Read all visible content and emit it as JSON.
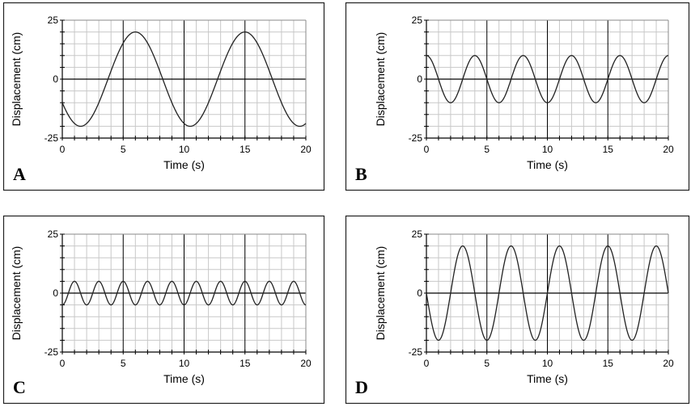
{
  "chart_data": [
    {
      "type": "line",
      "panel_label": "A",
      "xlabel": "Time (s)",
      "ylabel": "Displacement (cm)",
      "xlim": [
        0,
        20
      ],
      "ylim": [
        -25,
        25
      ],
      "xticks": [
        "0",
        "5",
        "10",
        "15",
        "20"
      ],
      "yticks": [
        "25",
        "0",
        "-25"
      ],
      "grid": true,
      "series": [
        {
          "amplitude": 20,
          "period": 9,
          "first_peak": 6
        }
      ]
    },
    {
      "type": "line",
      "panel_label": "B",
      "xlabel": "Time (s)",
      "ylabel": "Displacement (cm)",
      "xlim": [
        0,
        20
      ],
      "ylim": [
        -25,
        25
      ],
      "xticks": [
        "0",
        "5",
        "10",
        "15",
        "20"
      ],
      "yticks": [
        "25",
        "0",
        "-25"
      ],
      "grid": true,
      "series": [
        {
          "amplitude": 10,
          "period": 4,
          "first_peak": 0
        }
      ]
    },
    {
      "type": "line",
      "panel_label": "C",
      "xlabel": "Time (s)",
      "ylabel": "Displacement (cm)",
      "xlim": [
        0,
        20
      ],
      "ylim": [
        -25,
        25
      ],
      "xticks": [
        "0",
        "5",
        "10",
        "15",
        "20"
      ],
      "yticks": [
        "25",
        "0",
        "-25"
      ],
      "grid": true,
      "series": [
        {
          "amplitude": 5,
          "period": 2,
          "first_peak": 1
        }
      ]
    },
    {
      "type": "line",
      "panel_label": "D",
      "xlabel": "Time (s)",
      "ylabel": "Displacement (cm)",
      "xlim": [
        0,
        20
      ],
      "ylim": [
        -25,
        25
      ],
      "xticks": [
        "0",
        "5",
        "10",
        "15",
        "20"
      ],
      "yticks": [
        "25",
        "0",
        "-25"
      ],
      "grid": true,
      "series": [
        {
          "amplitude": 20,
          "period": 4,
          "first_peak": 3
        }
      ]
    }
  ],
  "colors": {
    "grid": "#c8c8c8",
    "major": "#000000",
    "curve": "#222222"
  }
}
